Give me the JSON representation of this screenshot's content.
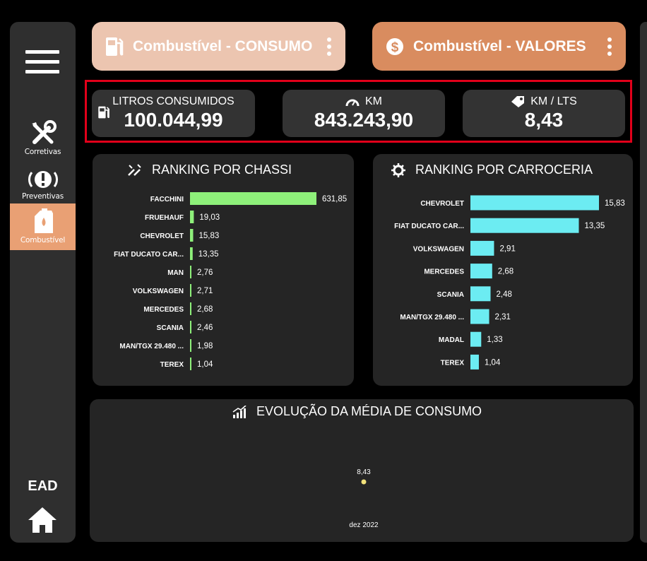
{
  "sidebar": {
    "items": [
      {
        "label": "Corretivas",
        "icon": "tools-icon"
      },
      {
        "label": "Preventivas",
        "icon": "brake-warning-icon"
      },
      {
        "label": "Combustível",
        "icon": "fuel-can-icon",
        "active": true
      }
    ],
    "footer_label": "EAD",
    "accent": "#e9a074"
  },
  "tabs": {
    "consumo_label": "Combustível - CONSUMO",
    "valores_label": "Combustível - VALORES",
    "consumo_color": "#ecc5b0",
    "valores_color": "#d98c5f"
  },
  "kpis": {
    "litros": {
      "label": "LITROS CONSUMIDOS",
      "value": "100.044,99",
      "icon": "fuel-pump-icon"
    },
    "km": {
      "label": "KM",
      "value": "843.243,90",
      "icon": "speedometer-icon"
    },
    "kmlts": {
      "label": "KM / LTS",
      "value": "8,43",
      "icon": "tag-icon"
    }
  },
  "chart_data": [
    {
      "type": "bar",
      "orientation": "horizontal",
      "title": "RANKING POR CHASSI",
      "color": "#8ef07a",
      "categories": [
        "FACCHINI",
        "FRUEHAUF",
        "CHEVROLET",
        "FIAT DUCATO CAR...",
        "MAN",
        "VOLKSWAGEN",
        "MERCEDES",
        "SCANIA",
        "MAN/TGX 29.480 ...",
        "TEREX"
      ],
      "values": [
        631.85,
        19.03,
        15.83,
        13.35,
        2.76,
        2.71,
        2.68,
        2.46,
        1.98,
        1.04
      ],
      "labels": [
        "631,85",
        "19,03",
        "15,83",
        "13,35",
        "2,76",
        "2,71",
        "2,68",
        "2,46",
        "1,98",
        "1,04"
      ]
    },
    {
      "type": "bar",
      "orientation": "horizontal",
      "title": "RANKING POR CARROCERIA",
      "color": "#6cecf2",
      "categories": [
        "CHEVROLET",
        "FIAT DUCATO CAR...",
        "VOLKSWAGEN",
        "MERCEDES",
        "SCANIA",
        "MAN/TGX 29.480 ...",
        "MADAL",
        "TEREX"
      ],
      "values": [
        15.83,
        13.35,
        2.91,
        2.68,
        2.48,
        2.31,
        1.33,
        1.04
      ],
      "labels": [
        "15,83",
        "13,35",
        "2,91",
        "2,68",
        "2,48",
        "2,31",
        "1,33",
        "1,04"
      ]
    },
    {
      "type": "line",
      "title": "EVOLUÇÃO DA MÉDIA DE CONSUMO",
      "color": "#f2e27a",
      "x": [
        "dez 2022"
      ],
      "values": [
        8.43
      ],
      "labels": [
        "8,43"
      ]
    }
  ]
}
